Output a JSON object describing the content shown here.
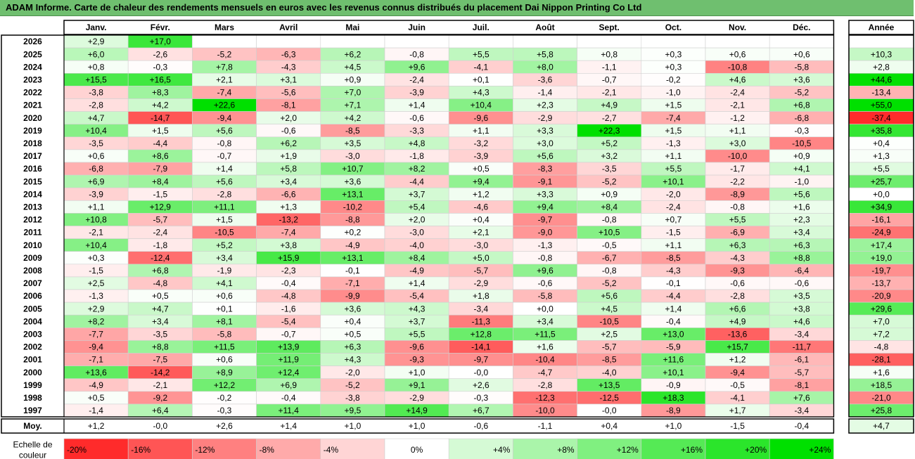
{
  "title": "ADAM Informe. Carte de chaleur des rendements mensuels en euros avec les revenus connus distribués du placement Dai Nippon Printing Co Ltd",
  "chart_data": {
    "type": "heatmap",
    "months": [
      "Janv.",
      "Févr.",
      "Mars",
      "Avril",
      "Mai",
      "Juin",
      "Juil.",
      "Août",
      "Sept.",
      "Oct.",
      "Nov.",
      "Déc."
    ],
    "year_header": "Année",
    "avg_label": "Moy.",
    "scale_label_line1": "Echelle de",
    "scale_label_line2": "couleur",
    "rows": [
      {
        "year": "2026",
        "m": [
          2.9,
          17.0,
          null,
          null,
          null,
          null,
          null,
          null,
          null,
          null,
          null,
          null
        ],
        "y": null
      },
      {
        "year": "2025",
        "m": [
          6.0,
          -2.6,
          -5.2,
          -6.3,
          6.2,
          -0.8,
          5.5,
          5.8,
          0.8,
          0.3,
          0.6,
          0.6
        ],
        "y": 10.3
      },
      {
        "year": "2024",
        "m": [
          0.8,
          -0.3,
          7.8,
          -4.3,
          4.5,
          9.6,
          -4.1,
          8.0,
          -1.1,
          0.3,
          -10.8,
          -5.8
        ],
        "y": 2.8
      },
      {
        "year": "2023",
        "m": [
          15.5,
          16.5,
          2.1,
          3.1,
          0.9,
          -2.4,
          0.1,
          -3.6,
          -0.7,
          -0.2,
          4.6,
          3.6
        ],
        "y": 44.6
      },
      {
        "year": "2022",
        "m": [
          -3.8,
          8.3,
          -7.4,
          -5.6,
          7.0,
          -3.9,
          4.3,
          -1.4,
          -2.1,
          -1.0,
          -2.4,
          -5.2
        ],
        "y": -13.4
      },
      {
        "year": "2021",
        "m": [
          -2.8,
          4.2,
          22.6,
          -8.1,
          7.1,
          1.4,
          10.4,
          2.3,
          4.9,
          1.5,
          -2.1,
          6.8
        ],
        "y": 55.0
      },
      {
        "year": "2020",
        "m": [
          4.7,
          -14.7,
          -9.4,
          2.0,
          4.2,
          -0.6,
          -9.6,
          -2.9,
          -2.7,
          -7.4,
          -1.2,
          -6.8
        ],
        "y": -37.4
      },
      {
        "year": "2019",
        "m": [
          10.4,
          1.5,
          5.6,
          -0.6,
          -8.5,
          -3.3,
          1.1,
          3.3,
          22.3,
          1.5,
          1.1,
          -0.3
        ],
        "y": 35.8
      },
      {
        "year": "2018",
        "m": [
          -3.5,
          -4.4,
          -0.8,
          6.2,
          3.5,
          4.8,
          -3.2,
          3.0,
          5.2,
          -1.3,
          3.0,
          -10.5
        ],
        "y": 0.4
      },
      {
        "year": "2017",
        "m": [
          0.6,
          8.6,
          -0.7,
          1.9,
          -3.0,
          -1.8,
          -3.9,
          5.6,
          3.2,
          1.1,
          -10.0,
          0.9
        ],
        "y": 1.3
      },
      {
        "year": "2016",
        "m": [
          -6.8,
          -7.9,
          1.4,
          5.8,
          10.7,
          8.2,
          0.5,
          -8.3,
          -3.5,
          5.5,
          -1.7,
          4.1
        ],
        "y": 5.5
      },
      {
        "year": "2015",
        "m": [
          6.9,
          8.4,
          5.6,
          3.4,
          3.6,
          -4.4,
          9.4,
          -9.1,
          -5.2,
          10.1,
          -2.2,
          -1.0
        ],
        "y": 25.7
      },
      {
        "year": "2014",
        "m": [
          -3.9,
          -1.5,
          -2.8,
          -6.6,
          13.1,
          3.7,
          1.2,
          3.3,
          0.9,
          -2.0,
          -8.9,
          5.6
        ],
        "y": 0.0
      },
      {
        "year": "2013",
        "m": [
          1.1,
          12.9,
          11.1,
          1.3,
          -10.2,
          5.4,
          -4.6,
          9.4,
          8.4,
          -2.4,
          -0.8,
          1.6
        ],
        "y": 34.9
      },
      {
        "year": "2012",
        "m": [
          10.8,
          -5.7,
          1.5,
          -13.2,
          -8.8,
          2.0,
          0.4,
          -9.7,
          -0.8,
          0.7,
          5.5,
          2.3
        ],
        "y": -16.1
      },
      {
        "year": "2011",
        "m": [
          -2.1,
          -2.4,
          -10.5,
          -7.4,
          0.2,
          -3.0,
          2.1,
          -9.0,
          10.5,
          -1.5,
          -6.9,
          3.4
        ],
        "y": -24.9
      },
      {
        "year": "2010",
        "m": [
          10.4,
          -1.8,
          5.2,
          3.8,
          -4.9,
          -4.0,
          -3.0,
          -1.3,
          -0.5,
          1.1,
          6.3,
          6.3
        ],
        "y": 17.4
      },
      {
        "year": "2009",
        "m": [
          0.3,
          -12.4,
          3.4,
          15.9,
          13.1,
          8.4,
          5.0,
          -0.8,
          -6.7,
          -8.5,
          -4.3,
          8.8
        ],
        "y": 19.0
      },
      {
        "year": "2008",
        "m": [
          -1.5,
          6.8,
          -1.9,
          -2.3,
          -0.1,
          -4.9,
          -5.7,
          9.6,
          -0.8,
          -4.3,
          -9.3,
          -6.4
        ],
        "y": -19.7
      },
      {
        "year": "2007",
        "m": [
          2.5,
          -4.8,
          4.1,
          -0.4,
          -7.1,
          1.4,
          -2.9,
          -0.6,
          -5.2,
          -0.1,
          -0.6,
          -0.6
        ],
        "y": -13.7
      },
      {
        "year": "2006",
        "m": [
          -1.3,
          0.5,
          0.6,
          -4.8,
          -9.9,
          -5.4,
          1.8,
          -5.8,
          5.6,
          -4.4,
          -2.8,
          3.5
        ],
        "y": -20.9
      },
      {
        "year": "2005",
        "m": [
          2.9,
          4.7,
          0.1,
          -1.6,
          3.6,
          4.3,
          -3.4,
          0.0,
          4.5,
          1.4,
          6.6,
          3.8
        ],
        "y": 29.6
      },
      {
        "year": "2004",
        "m": [
          8.2,
          3.4,
          8.1,
          -5.4,
          0.4,
          3.7,
          -11.3,
          3.4,
          -10.5,
          -0.4,
          4.9,
          4.6
        ],
        "y": 7.0
      },
      {
        "year": "2003",
        "m": [
          -7.7,
          -3.5,
          -5.8,
          -0.7,
          0.5,
          5.5,
          12.8,
          11.5,
          2.5,
          13.0,
          -13.6,
          -3.4
        ],
        "y": 7.2
      },
      {
        "year": "2002",
        "m": [
          -9.4,
          8.8,
          11.5,
          13.9,
          6.3,
          -9.6,
          -14.1,
          1.6,
          -5.7,
          -5.9,
          15.7,
          -11.7
        ],
        "y": -4.8
      },
      {
        "year": "2001",
        "m": [
          -7.1,
          -7.5,
          0.6,
          11.9,
          4.3,
          -9.3,
          -9.7,
          -10.4,
          -8.5,
          11.6,
          1.2,
          -6.1
        ],
        "y": -28.1
      },
      {
        "year": "2000",
        "m": [
          13.6,
          -14.2,
          8.9,
          12.4,
          -2.0,
          1.0,
          -0.0,
          -4.7,
          -4.0,
          10.1,
          -9.4,
          -5.7
        ],
        "y": 1.6
      },
      {
        "year": "1999",
        "m": [
          -4.9,
          -2.1,
          12.2,
          6.9,
          -5.2,
          9.1,
          2.6,
          -2.8,
          13.5,
          -0.9,
          -0.5,
          -8.1
        ],
        "y": 18.5
      },
      {
        "year": "1998",
        "m": [
          0.5,
          -9.2,
          -0.2,
          -0.4,
          -3.8,
          -2.9,
          -0.3,
          -12.3,
          -12.5,
          18.3,
          -4.1,
          7.6
        ],
        "y": -21.0
      },
      {
        "year": "1997",
        "m": [
          -1.4,
          6.4,
          -0.3,
          11.4,
          9.5,
          14.9,
          6.7,
          -10.0,
          -0.0,
          -8.9,
          1.7,
          -3.4
        ],
        "y": 25.8
      }
    ],
    "avg": {
      "m": [
        1.2,
        -0.0,
        2.6,
        1.4,
        1.0,
        1.0,
        -0.6,
        -1.1,
        0.4,
        1.0,
        -1.5,
        -0.4
      ],
      "y": 4.7
    },
    "scale": [
      -20,
      -16,
      -12,
      -8,
      -4,
      0,
      4,
      8,
      12,
      16,
      20,
      24
    ],
    "colors": {
      "pos_max": "#00e000",
      "neg_max": "#ff0000",
      "neutral": "#ffffff"
    }
  }
}
